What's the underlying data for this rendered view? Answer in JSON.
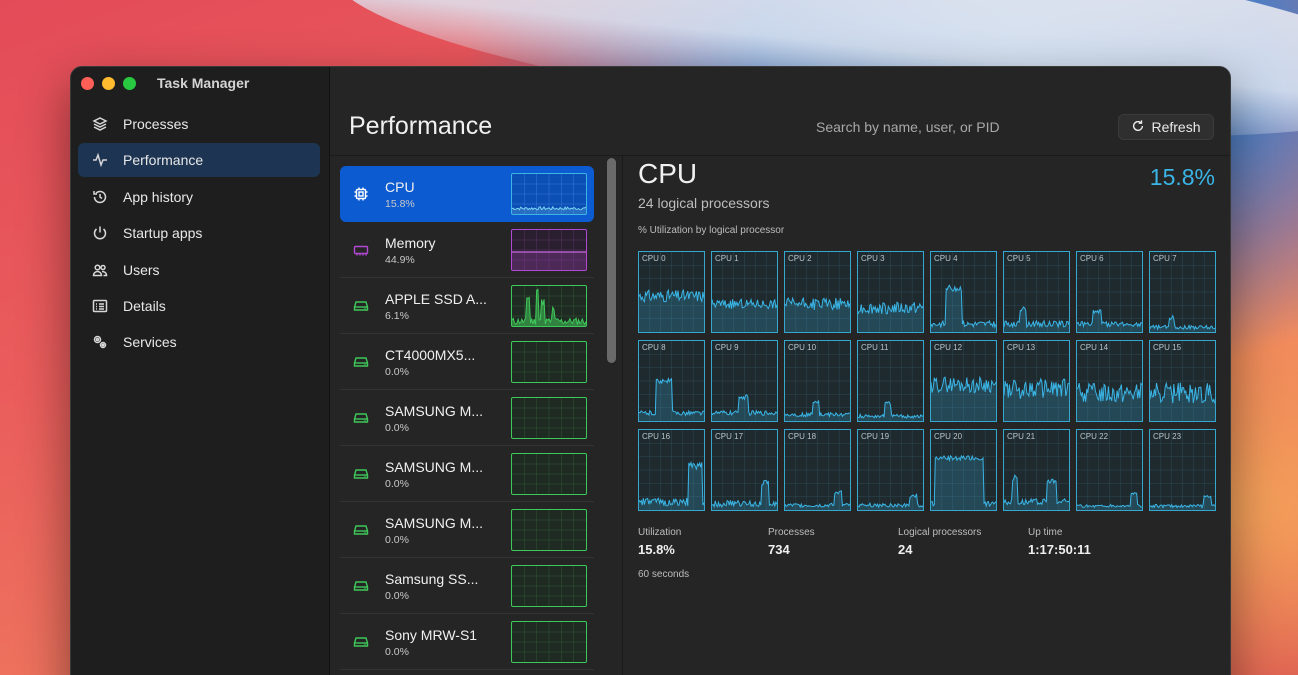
{
  "window": {
    "title": "Task Manager"
  },
  "sidebar": {
    "items": [
      {
        "label": "Processes",
        "icon": "layers-icon",
        "active": false
      },
      {
        "label": "Performance",
        "icon": "pulse-icon",
        "active": true
      },
      {
        "label": "App history",
        "icon": "history-icon",
        "active": false
      },
      {
        "label": "Startup apps",
        "icon": "power-icon",
        "active": false
      },
      {
        "label": "Users",
        "icon": "users-icon",
        "active": false
      },
      {
        "label": "Details",
        "icon": "details-icon",
        "active": false
      },
      {
        "label": "Services",
        "icon": "services-icon",
        "active": false
      }
    ]
  },
  "header": {
    "title": "Performance",
    "search_placeholder": "Search by name, user, or PID",
    "refresh_label": "Refresh"
  },
  "devices": [
    {
      "name": "CPU",
      "value": "15.8%",
      "icon": "chip-icon",
      "color": "#3ab5e6",
      "active": true
    },
    {
      "name": "Memory",
      "value": "44.9%",
      "icon": "memory-icon",
      "color": "#b348d4",
      "active": false
    },
    {
      "name": "APPLE SSD A...",
      "value": "6.1%",
      "icon": "disk-icon",
      "color": "#3fc85a",
      "active": false
    },
    {
      "name": "CT4000MX5...",
      "value": "0.0%",
      "icon": "disk-icon",
      "color": "#3fc85a",
      "active": false
    },
    {
      "name": "SAMSUNG M...",
      "value": "0.0%",
      "icon": "disk-icon",
      "color": "#3fc85a",
      "active": false
    },
    {
      "name": "SAMSUNG M...",
      "value": "0.0%",
      "icon": "disk-icon",
      "color": "#3fc85a",
      "active": false
    },
    {
      "name": "SAMSUNG M...",
      "value": "0.0%",
      "icon": "disk-icon",
      "color": "#3fc85a",
      "active": false
    },
    {
      "name": "Samsung SS...",
      "value": "0.0%",
      "icon": "disk-icon",
      "color": "#3fc85a",
      "active": false
    },
    {
      "name": "Sony MRW-S1",
      "value": "0.0%",
      "icon": "disk-icon",
      "color": "#3fc85a",
      "active": false
    }
  ],
  "detail": {
    "title": "CPU",
    "subtitle": "24 logical processors",
    "percent": "15.8%",
    "grid_label": "% Utilization by logical processor",
    "processors": [
      "CPU 0",
      "CPU 1",
      "CPU 2",
      "CPU 3",
      "CPU 4",
      "CPU 5",
      "CPU 6",
      "CPU 7",
      "CPU 8",
      "CPU 9",
      "CPU 10",
      "CPU 11",
      "CPU 12",
      "CPU 13",
      "CPU 14",
      "CPU 15",
      "CPU 16",
      "CPU 17",
      "CPU 18",
      "CPU 19",
      "CPU 20",
      "CPU 21",
      "CPU 22",
      "CPU 23"
    ],
    "stats": [
      {
        "label": "Utilization",
        "value": "15.8%"
      },
      {
        "label": "Processes",
        "value": "734"
      },
      {
        "label": "Logical processors",
        "value": "24"
      },
      {
        "label": "Up time",
        "value": "1:17:50:11"
      }
    ],
    "time_window": "60 seconds"
  },
  "colors": {
    "accent": "#0c5bd1",
    "cpu": "#3ab5e6",
    "memory": "#b348d4",
    "disk": "#3fc85a"
  }
}
